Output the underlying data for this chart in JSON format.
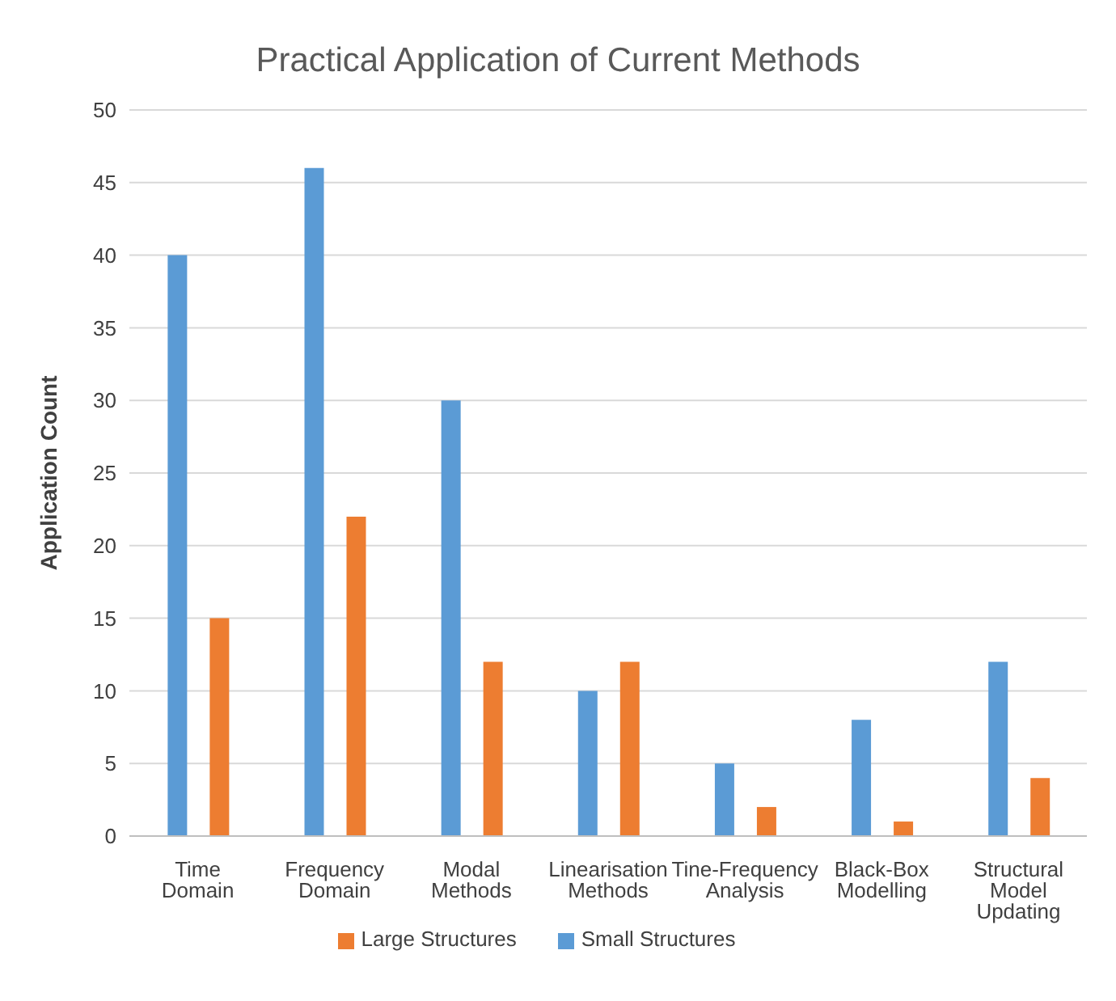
{
  "chart_data": {
    "type": "bar",
    "title": "Practical Application of Current Methods",
    "ylabel": "Application Count",
    "categories": [
      "Time Domain",
      "Frequency Domain",
      "Modal Methods",
      "Linearisation Methods",
      "Tine-Frequency Analysis",
      "Black-Box Modelling",
      "Structural Model Updating"
    ],
    "series": [
      {
        "name": "Small Structures",
        "color": "#5b9bd5",
        "values": [
          40,
          46,
          30,
          10,
          5,
          8,
          12
        ]
      },
      {
        "name": "Large Structures",
        "color": "#ed7d31",
        "values": [
          15,
          22,
          12,
          12,
          2,
          1,
          4
        ]
      }
    ],
    "ylim": [
      0,
      50
    ],
    "yticks": [
      0,
      5,
      10,
      15,
      20,
      25,
      30,
      35,
      40,
      45,
      50
    ],
    "grid": "y",
    "legend": "bottom"
  }
}
